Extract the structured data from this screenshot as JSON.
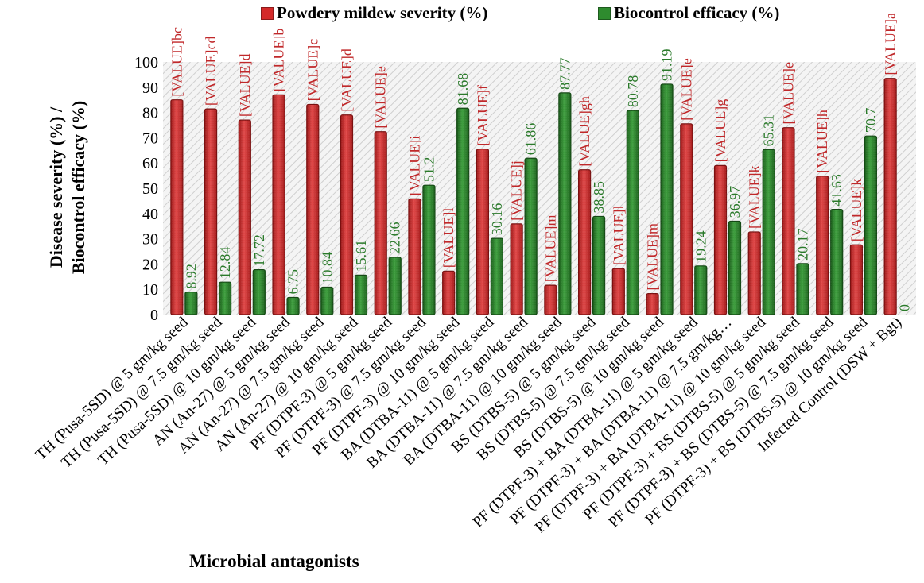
{
  "chart_data": {
    "type": "bar",
    "title": "",
    "xlabel": "Microbial antagonists",
    "ylabel_line1": "Disease severity (%) /",
    "ylabel_line2": "Biocontrol efficacy (%)",
    "ylim": [
      0,
      100
    ],
    "yticks": [
      0,
      10,
      20,
      30,
      40,
      50,
      60,
      70,
      80,
      90,
      100
    ],
    "legend_position": "top",
    "gridlines": false,
    "plot_background": "hatched",
    "categories": [
      "TH (Pusa-5SD) @ 5 gm/kg seed",
      "TH (Pusa-5SD) @ 7.5 gm/kg seed",
      "TH (Pusa-5SD) @ 10 gm/kg seed",
      "AN (An-27) @ 5 gm/kg seed",
      "AN (An-27) @ 7.5 gm/kg seed",
      "AN (An-27) @ 10 gm/kg seed",
      "PF (DTPF-3) @ 5 gm/kg seed",
      "PF (DTPF-3) @ 7.5 gm/kg seed",
      "PF (DTPF-3) @ 10 gm/kg seed",
      "BA (DTBA-11) @ 5 gm/kg seed",
      "BA (DTBA-11) @ 7.5 gm/kg seed",
      "BA (DTBA-11) @ 10 gm/kg seed",
      "BS (DTBS-5) @ 5 gm/kg seed",
      "BS (DTBS-5) @ 7.5 gm/kg seed",
      "BS (DTBS-5) @ 10 gm/kg seed",
      "PF (DTPF-3) + BA (DTBA-11) @ 5 gm/kg seed",
      "PF (DTPF-3) + BA (DTBA-11) @ 7.5 gm/kg…",
      "PF (DTPF-3) + BA (DTBA-11) @ 10 gm/kg seed",
      "PF (DTPF-3) + BS (DTBS-5) @ 5 gm/kg seed",
      "PF (DTPF-3) + BS (DTBS-5) @ 7.5 gm/kg seed",
      "PF (DTPF-3) + BS (DTBS-5) @ 10 gm/kg seed",
      "Infected Control (DSW + Bgt)"
    ],
    "series": [
      {
        "name": "Powdery mildew severity (%)",
        "color": "#d42a2a",
        "values": [
          85,
          81.4,
          77,
          87,
          83.2,
          79,
          72.4,
          45.8,
          17.2,
          65.5,
          35.9,
          11.6,
          57.3,
          18.2,
          8.3,
          75.5,
          59,
          32.7,
          74,
          54.8,
          27.6,
          93.5
        ],
        "labels": [
          "[VALUE]bc",
          "[VALUE]cd",
          "[VALUE]d",
          "[VALUE]b",
          "[VALUE]c",
          "[VALUE]d",
          "[VALUE]e",
          "[VALUE]i",
          "[VALUE]l",
          "[VALUE]f",
          "[VALUE]j",
          "[VALUE]m",
          "[VALUE]gh",
          "[VALUE]l",
          "[VALUE]m",
          "[VALUE]e",
          "[VALUE]g",
          "[VALUE]k",
          "[VALUE]e",
          "[VALUE]h",
          "[VALUE]k",
          "[VALUE]a"
        ]
      },
      {
        "name": "Biocontrol efficacy (%)",
        "color": "#2e8b2e",
        "values": [
          8.92,
          12.84,
          17.72,
          6.75,
          10.84,
          15.61,
          22.66,
          51.2,
          81.68,
          30.16,
          61.86,
          87.77,
          38.85,
          80.78,
          91.19,
          19.24,
          36.97,
          65.31,
          20.17,
          41.63,
          70.7,
          0
        ],
        "labels": [
          "8.92",
          "12.84",
          "17.72",
          "6.75",
          "10.84",
          "15.61",
          "22.66",
          "51.2",
          "81.68",
          "30.16",
          "61.86",
          "87.77",
          "38.85",
          "80.78",
          "91.19",
          "19.24",
          "36.97",
          "65.31",
          "20.17",
          "41.63",
          "70.7",
          "0"
        ]
      }
    ]
  }
}
